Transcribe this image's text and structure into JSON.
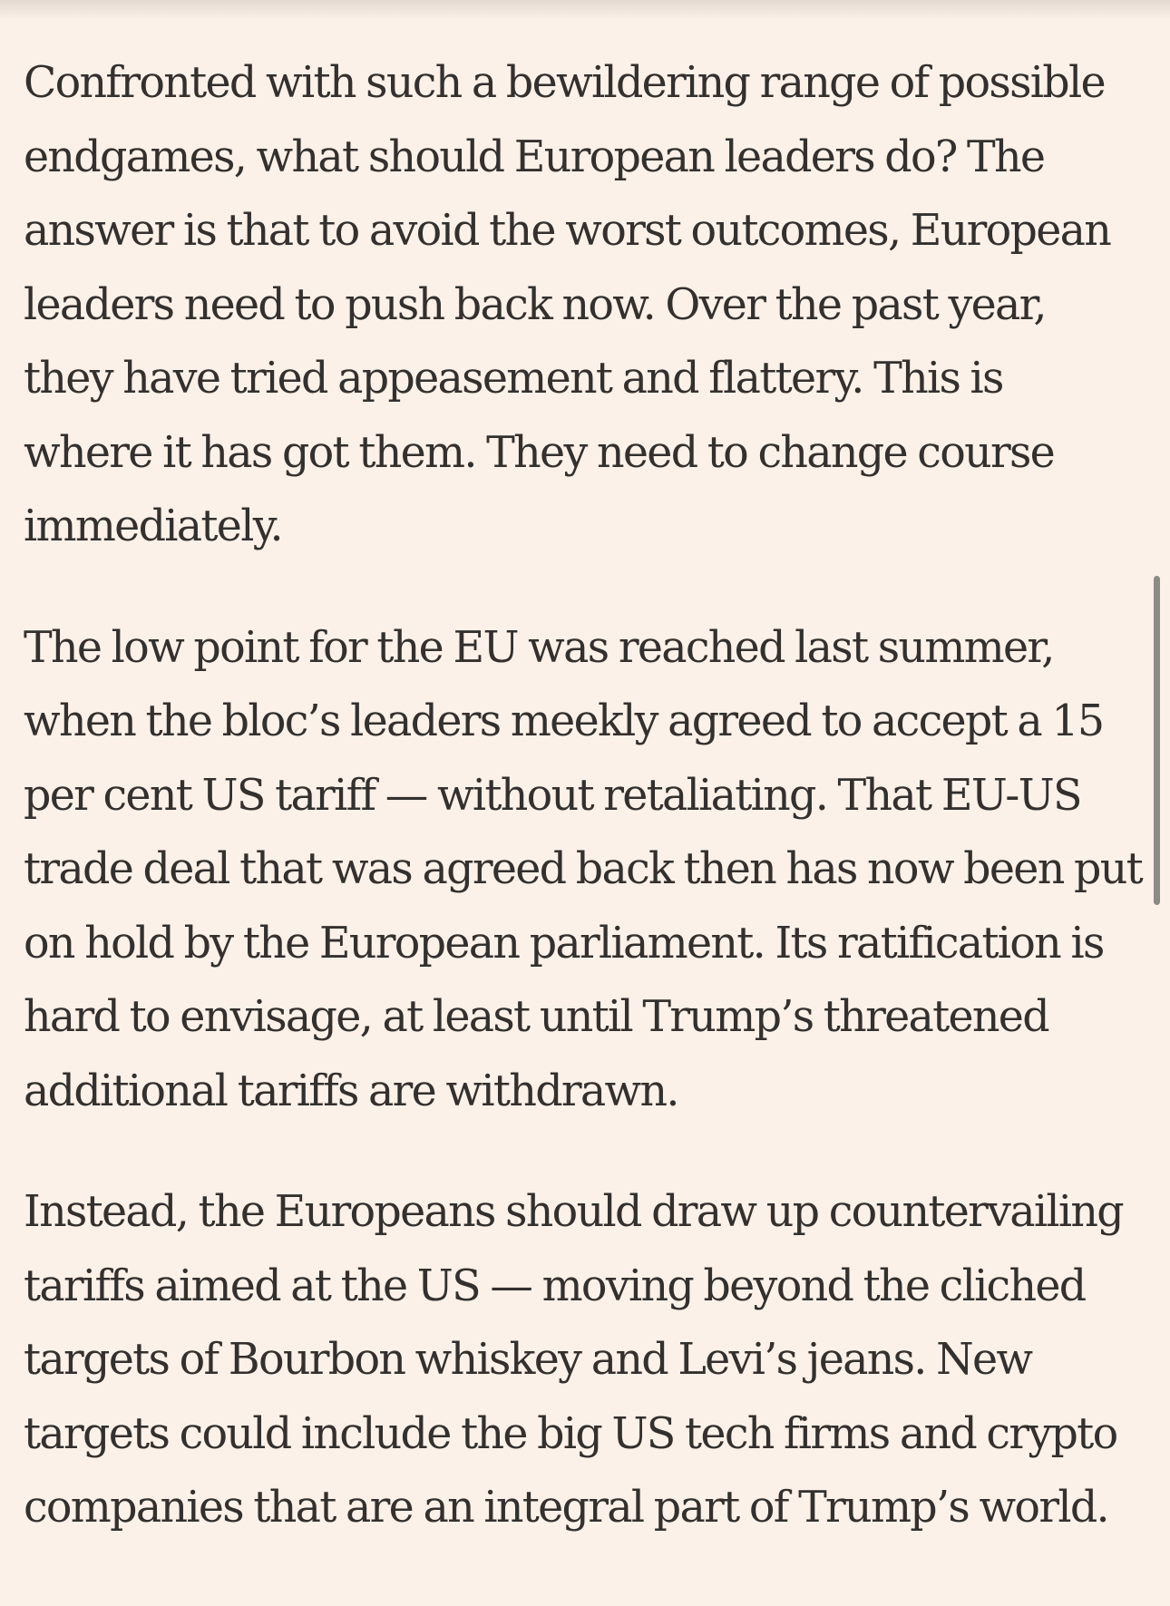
{
  "article": {
    "paragraphs": [
      {
        "lines": [
          "Confronted with such a bewildering range of possible",
          "endgames, what should European leaders do? The",
          "answer is that to avoid the worst outcomes, European",
          "leaders need to push back now. Over the past year,",
          "they have tried appeasement and flattery. This is",
          "where it has got them. They need to change course",
          "immediately."
        ]
      },
      {
        "lines": [
          "The low point for the EU was reached last summer,",
          "when the bloc’s leaders meekly agreed to accept a 15",
          "per cent US tariff — without retaliating. That EU-US",
          "trade deal that was agreed back then has now been put",
          "on hold by the European parliament. Its ratification is",
          "hard to envisage, at least until Trump’s threatened",
          "additional tariffs are withdrawn."
        ]
      },
      {
        "lines": [
          "Instead, the Europeans should draw up countervailing",
          "tariffs aimed at the US — moving beyond the cliched",
          "targets of Bourbon whiskey and Levi’s jeans. New",
          "targets could include the big US tech firms and crypto",
          "companies that are an integral part of Trump’s world."
        ]
      }
    ]
  },
  "colors": {
    "background": "#FCF1E8",
    "text": "#33302E",
    "scrollbar": "#8E8A86"
  }
}
